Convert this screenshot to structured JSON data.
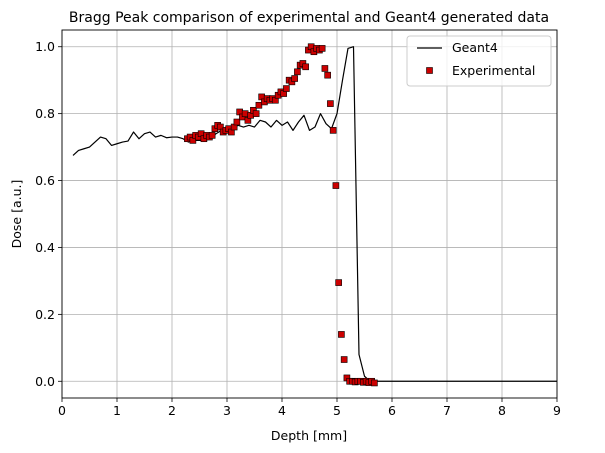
{
  "chart_data": {
    "type": "line",
    "title": "Bragg Peak comparison of experimental and Geant4 generated data",
    "xlabel": "Depth [mm]",
    "ylabel": "Dose [a.u.]",
    "xlim": [
      0,
      9
    ],
    "ylim": [
      -0.05,
      1.05
    ],
    "xticks": [
      0,
      1,
      2,
      3,
      4,
      5,
      6,
      7,
      8,
      9
    ],
    "yticks": [
      0.0,
      0.2,
      0.4,
      0.6,
      0.8,
      1.0
    ],
    "xtick_labels": [
      "0",
      "1",
      "2",
      "3",
      "4",
      "5",
      "6",
      "7",
      "8",
      "9"
    ],
    "ytick_labels": [
      "0.0",
      "0.2",
      "0.4",
      "0.6",
      "0.8",
      "1.0"
    ],
    "grid": true,
    "legend_position": "top-right",
    "series": [
      {
        "name": "Geant4",
        "type": "line",
        "color": "#000000",
        "x": [
          0.2,
          0.3,
          0.4,
          0.5,
          0.6,
          0.7,
          0.8,
          0.9,
          1.0,
          1.1,
          1.2,
          1.3,
          1.4,
          1.5,
          1.6,
          1.7,
          1.8,
          1.9,
          2.0,
          2.1,
          2.2,
          2.3,
          2.4,
          2.5,
          2.6,
          2.7,
          2.8,
          2.9,
          3.0,
          3.1,
          3.2,
          3.3,
          3.4,
          3.5,
          3.6,
          3.7,
          3.8,
          3.9,
          4.0,
          4.1,
          4.2,
          4.3,
          4.4,
          4.5,
          4.6,
          4.7,
          4.8,
          4.9,
          5.0,
          5.1,
          5.2,
          5.3,
          5.4,
          5.5,
          5.6,
          5.7,
          6.0,
          7.0,
          8.0,
          9.0
        ],
        "y": [
          0.675,
          0.69,
          0.695,
          0.7,
          0.715,
          0.73,
          0.725,
          0.705,
          0.71,
          0.715,
          0.718,
          0.745,
          0.725,
          0.74,
          0.745,
          0.73,
          0.735,
          0.728,
          0.73,
          0.73,
          0.725,
          0.715,
          0.72,
          0.72,
          0.72,
          0.725,
          0.74,
          0.75,
          0.745,
          0.755,
          0.765,
          0.76,
          0.765,
          0.76,
          0.78,
          0.775,
          0.76,
          0.78,
          0.765,
          0.775,
          0.75,
          0.775,
          0.795,
          0.75,
          0.76,
          0.8,
          0.77,
          0.755,
          0.8,
          0.9,
          0.995,
          1.0,
          0.08,
          0.015,
          0.0,
          0.0,
          0.0,
          0.0,
          0.0,
          0.0
        ]
      },
      {
        "name": "Experimental",
        "type": "scatter",
        "color": "#cc0000",
        "marker_edge_color": "#000000",
        "x": [
          2.28,
          2.33,
          2.38,
          2.43,
          2.48,
          2.53,
          2.58,
          2.63,
          2.68,
          2.73,
          2.78,
          2.83,
          2.88,
          2.93,
          2.98,
          3.03,
          3.08,
          3.13,
          3.18,
          3.23,
          3.28,
          3.33,
          3.38,
          3.43,
          3.48,
          3.53,
          3.58,
          3.63,
          3.68,
          3.73,
          3.78,
          3.83,
          3.88,
          3.93,
          3.98,
          4.03,
          4.08,
          4.13,
          4.18,
          4.23,
          4.28,
          4.33,
          4.38,
          4.43,
          4.48,
          4.53,
          4.58,
          4.63,
          4.68,
          4.73,
          4.78,
          4.83,
          4.88,
          4.93,
          4.98,
          5.03,
          5.08,
          5.13,
          5.18,
          5.23,
          5.28,
          5.33,
          5.38,
          5.43,
          5.48,
          5.53,
          5.58,
          5.63,
          5.68
        ],
        "y": [
          0.725,
          0.73,
          0.72,
          0.735,
          0.73,
          0.74,
          0.725,
          0.735,
          0.73,
          0.735,
          0.755,
          0.765,
          0.76,
          0.745,
          0.75,
          0.755,
          0.745,
          0.76,
          0.775,
          0.805,
          0.79,
          0.8,
          0.78,
          0.795,
          0.81,
          0.8,
          0.825,
          0.85,
          0.835,
          0.845,
          0.84,
          0.845,
          0.84,
          0.855,
          0.865,
          0.86,
          0.875,
          0.9,
          0.895,
          0.905,
          0.925,
          0.945,
          0.95,
          0.94,
          0.99,
          1.0,
          0.985,
          0.995,
          0.99,
          0.995,
          0.935,
          0.915,
          0.83,
          0.75,
          0.585,
          0.295,
          0.14,
          0.065,
          0.01,
          0.0,
          0.0,
          -0.002,
          0.0,
          0.0,
          -0.003,
          0.0,
          -0.004,
          0.0,
          -0.005
        ]
      }
    ]
  }
}
